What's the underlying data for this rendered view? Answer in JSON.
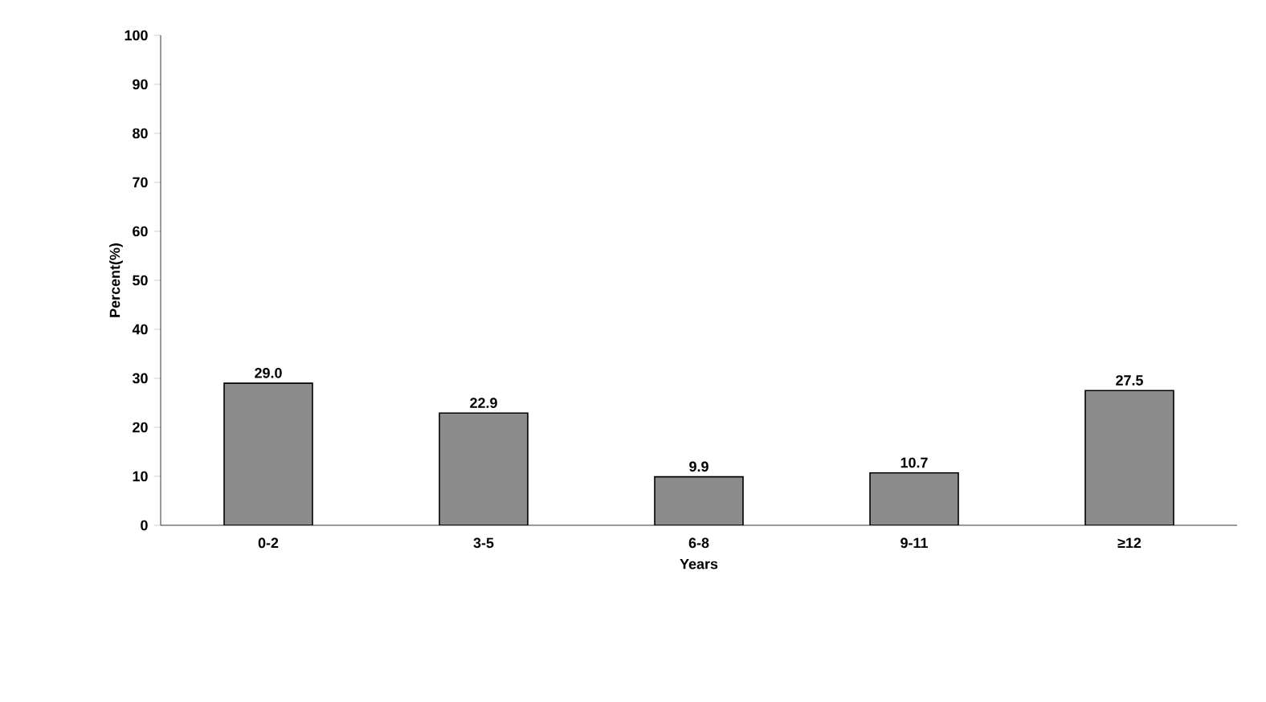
{
  "chart_data": {
    "type": "bar",
    "xlabel": "Years",
    "ylabel": "Percent(%)",
    "categories": [
      "0-2",
      "3-5",
      "6-8",
      "9-11",
      "≥12"
    ],
    "values": [
      29.0,
      22.9,
      9.9,
      10.7,
      27.5
    ],
    "value_labels": [
      "29.0",
      "22.9",
      "9.9",
      "10.7",
      "27.5"
    ],
    "color": "#8c8c8c",
    "ylim": [
      0,
      100
    ],
    "yticks": [
      0,
      10,
      20,
      30,
      40,
      50,
      60,
      70,
      80,
      90,
      100
    ],
    "grid": false
  }
}
